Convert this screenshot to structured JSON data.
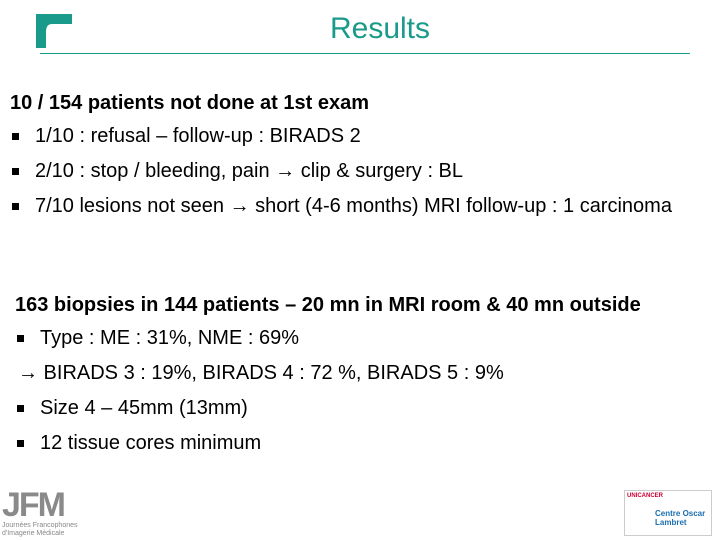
{
  "header": {
    "title": "Results"
  },
  "sections": [
    {
      "heading": "10 / 154 patients not done at 1st exam",
      "items": [
        {
          "text": "1/10 : refusal – follow-up : BIRADS 2",
          "bullet": true
        },
        {
          "text": "2/10 : stop / bleeding, pain → clip & surgery : BL",
          "bullet": true
        },
        {
          "text": "7/10 lesions not seen  →  short (4-6 months) MRI follow-up : 1 carcinoma",
          "bullet": true
        }
      ]
    },
    {
      "heading": "163 biopsies in 144 patients – 20 mn in MRI room & 40 mn outside",
      "items": [
        {
          "text": "Type : ME : 31%, NME : 69%",
          "bullet": true
        },
        {
          "text": "→ BIRADS 3 : 19%, BIRADS 4 : 72 %, BIRADS 5 : 9%",
          "bullet": false
        },
        {
          "text": "Size 4 – 45mm (13mm)",
          "bullet": true
        },
        {
          "text": "12 tissue cores minimum",
          "bullet": true
        }
      ]
    }
  ],
  "footer": {
    "left_logo": {
      "mark": "JFM",
      "caption": "Journées Francophones d'Imagerie Médicale"
    },
    "right_logo": {
      "brand": "UNICANCER",
      "name": "Centre Oscar Lambret"
    }
  }
}
